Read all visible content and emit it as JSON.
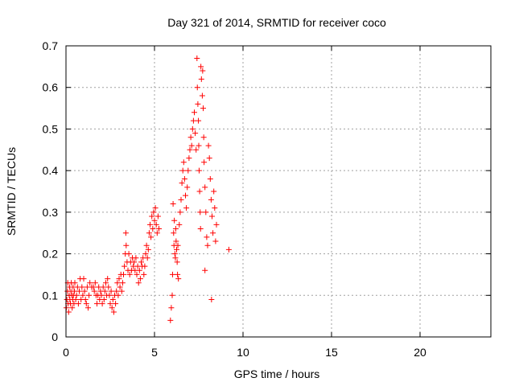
{
  "chart_data": {
    "type": "scatter",
    "title": "Day 321 of 2014, SRMTID for receiver coco",
    "xlabel": "GPS time / hours",
    "ylabel": "SRMTID / TECUs",
    "xlim": [
      0,
      24
    ],
    "ylim": [
      0,
      0.7
    ],
    "xticks": [
      0,
      5,
      10,
      15,
      20
    ],
    "yticks": [
      0,
      0.1,
      0.2,
      0.3,
      0.4,
      0.5,
      0.6,
      0.7
    ],
    "grid": true,
    "marker": "+",
    "color": "#ff0000",
    "series": [
      {
        "name": "SRMTID",
        "points": [
          [
            0.02,
            0.07
          ],
          [
            0.05,
            0.09
          ],
          [
            0.08,
            0.11
          ],
          [
            0.1,
            0.13
          ],
          [
            0.12,
            0.08
          ],
          [
            0.15,
            0.06
          ],
          [
            0.18,
            0.1
          ],
          [
            0.2,
            0.12
          ],
          [
            0.22,
            0.09
          ],
          [
            0.25,
            0.08
          ],
          [
            0.28,
            0.11
          ],
          [
            0.3,
            0.13
          ],
          [
            0.33,
            0.1
          ],
          [
            0.35,
            0.07
          ],
          [
            0.38,
            0.09
          ],
          [
            0.4,
            0.12
          ],
          [
            0.42,
            0.1
          ],
          [
            0.45,
            0.08
          ],
          [
            0.48,
            0.11
          ],
          [
            0.5,
            0.13
          ],
          [
            0.55,
            0.09
          ],
          [
            0.6,
            0.1
          ],
          [
            0.65,
            0.12
          ],
          [
            0.7,
            0.08
          ],
          [
            0.75,
            0.11
          ],
          [
            0.8,
            0.14
          ],
          [
            0.85,
            0.09
          ],
          [
            0.9,
            0.12
          ],
          [
            0.95,
            0.1
          ],
          [
            1.0,
            0.14
          ],
          [
            1.05,
            0.11
          ],
          [
            1.1,
            0.09
          ],
          [
            1.15,
            0.08
          ],
          [
            1.2,
            0.12
          ],
          [
            1.25,
            0.07
          ],
          [
            1.3,
            0.1
          ],
          [
            1.35,
            0.13
          ],
          [
            1.45,
            0.12
          ],
          [
            1.55,
            0.12
          ],
          [
            1.6,
            0.11
          ],
          [
            1.65,
            0.13
          ],
          [
            1.7,
            0.1
          ],
          [
            1.75,
            0.08
          ],
          [
            1.8,
            0.1
          ],
          [
            1.85,
            0.12
          ],
          [
            1.9,
            0.09
          ],
          [
            1.95,
            0.11
          ],
          [
            2.0,
            0.1
          ],
          [
            2.05,
            0.08
          ],
          [
            2.1,
            0.12
          ],
          [
            2.15,
            0.09
          ],
          [
            2.2,
            0.11
          ],
          [
            2.25,
            0.13
          ],
          [
            2.3,
            0.1
          ],
          [
            2.35,
            0.14
          ],
          [
            2.4,
            0.12
          ],
          [
            2.45,
            0.1
          ],
          [
            2.5,
            0.08
          ],
          [
            2.55,
            0.11
          ],
          [
            2.6,
            0.07
          ],
          [
            2.65,
            0.09
          ],
          [
            2.7,
            0.06
          ],
          [
            2.75,
            0.1
          ],
          [
            2.8,
            0.08
          ],
          [
            2.85,
            0.11
          ],
          [
            2.9,
            0.13
          ],
          [
            2.95,
            0.1
          ],
          [
            3.0,
            0.14
          ],
          [
            3.05,
            0.12
          ],
          [
            3.1,
            0.15
          ],
          [
            3.15,
            0.11
          ],
          [
            3.2,
            0.13
          ],
          [
            3.25,
            0.15
          ],
          [
            3.3,
            0.17
          ],
          [
            3.35,
            0.2
          ],
          [
            3.38,
            0.25
          ],
          [
            3.4,
            0.22
          ],
          [
            3.45,
            0.18
          ],
          [
            3.5,
            0.16
          ],
          [
            3.55,
            0.2
          ],
          [
            3.6,
            0.15
          ],
          [
            3.65,
            0.18
          ],
          [
            3.7,
            0.16
          ],
          [
            3.75,
            0.19
          ],
          [
            3.8,
            0.17
          ],
          [
            3.85,
            0.18
          ],
          [
            3.9,
            0.16
          ],
          [
            3.95,
            0.19
          ],
          [
            4.0,
            0.15
          ],
          [
            4.05,
            0.17
          ],
          [
            4.1,
            0.13
          ],
          [
            4.15,
            0.16
          ],
          [
            4.2,
            0.14
          ],
          [
            4.25,
            0.18
          ],
          [
            4.3,
            0.17
          ],
          [
            4.35,
            0.19
          ],
          [
            4.4,
            0.15
          ],
          [
            4.45,
            0.17
          ],
          [
            4.5,
            0.2
          ],
          [
            4.55,
            0.22
          ],
          [
            4.6,
            0.19
          ],
          [
            4.65,
            0.21
          ],
          [
            4.7,
            0.25
          ],
          [
            4.75,
            0.27
          ],
          [
            4.8,
            0.24
          ],
          [
            4.85,
            0.29
          ],
          [
            4.9,
            0.26
          ],
          [
            4.95,
            0.3
          ],
          [
            5.0,
            0.28
          ],
          [
            5.05,
            0.31
          ],
          [
            5.1,
            0.27
          ],
          [
            5.15,
            0.25
          ],
          [
            5.2,
            0.29
          ],
          [
            5.25,
            0.26
          ],
          [
            5.9,
            0.04
          ],
          [
            5.95,
            0.07
          ],
          [
            6.0,
            0.1
          ],
          [
            6.02,
            0.15
          ],
          [
            6.05,
            0.32
          ],
          [
            6.08,
            0.25
          ],
          [
            6.1,
            0.22
          ],
          [
            6.12,
            0.28
          ],
          [
            6.15,
            0.2
          ],
          [
            6.18,
            0.19
          ],
          [
            6.2,
            0.26
          ],
          [
            6.22,
            0.23
          ],
          [
            6.25,
            0.21
          ],
          [
            6.28,
            0.18
          ],
          [
            6.3,
            0.15
          ],
          [
            6.32,
            0.22
          ],
          [
            6.35,
            0.14
          ],
          [
            6.4,
            0.27
          ],
          [
            6.45,
            0.3
          ],
          [
            6.5,
            0.33
          ],
          [
            6.55,
            0.37
          ],
          [
            6.6,
            0.4
          ],
          [
            6.65,
            0.42
          ],
          [
            6.7,
            0.38
          ],
          [
            6.75,
            0.34
          ],
          [
            6.8,
            0.31
          ],
          [
            6.85,
            0.36
          ],
          [
            6.9,
            0.4
          ],
          [
            6.95,
            0.43
          ],
          [
            7.0,
            0.45
          ],
          [
            7.05,
            0.48
          ],
          [
            7.1,
            0.46
          ],
          [
            7.15,
            0.5
          ],
          [
            7.2,
            0.52
          ],
          [
            7.25,
            0.54
          ],
          [
            7.3,
            0.49
          ],
          [
            7.35,
            0.45
          ],
          [
            7.4,
            0.67
          ],
          [
            7.42,
            0.6
          ],
          [
            7.45,
            0.56
          ],
          [
            7.48,
            0.52
          ],
          [
            7.5,
            0.46
          ],
          [
            7.52,
            0.4
          ],
          [
            7.55,
            0.35
          ],
          [
            7.58,
            0.3
          ],
          [
            7.6,
            0.26
          ],
          [
            7.62,
            0.65
          ],
          [
            7.65,
            0.62
          ],
          [
            7.7,
            0.58
          ],
          [
            7.72,
            0.64
          ],
          [
            7.75,
            0.55
          ],
          [
            7.78,
            0.48
          ],
          [
            7.8,
            0.42
          ],
          [
            7.85,
            0.36
          ],
          [
            7.9,
            0.3
          ],
          [
            7.95,
            0.24
          ],
          [
            8.0,
            0.22
          ],
          [
            8.05,
            0.46
          ],
          [
            8.1,
            0.43
          ],
          [
            8.15,
            0.38
          ],
          [
            8.2,
            0.33
          ],
          [
            8.25,
            0.29
          ],
          [
            8.3,
            0.25
          ],
          [
            8.35,
            0.35
          ],
          [
            8.4,
            0.31
          ],
          [
            8.45,
            0.23
          ],
          [
            8.5,
            0.27
          ],
          [
            7.85,
            0.16
          ],
          [
            8.22,
            0.09
          ],
          [
            9.2,
            0.21
          ]
        ]
      }
    ]
  }
}
